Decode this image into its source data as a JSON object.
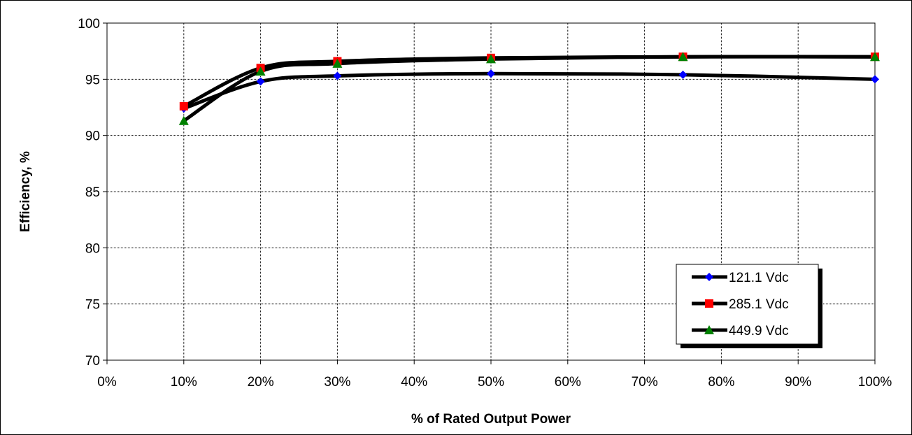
{
  "chart_data": {
    "type": "line",
    "title": "",
    "xlabel": "% of Rated Output Power",
    "ylabel": "Efficiency, %",
    "x": [
      10,
      20,
      30,
      50,
      75,
      100
    ],
    "xlim": [
      0,
      100
    ],
    "ylim": [
      70,
      100
    ],
    "x_ticks": [
      "0%",
      "10%",
      "20%",
      "30%",
      "40%",
      "50%",
      "60%",
      "70%",
      "80%",
      "90%",
      "100%"
    ],
    "y_ticks": [
      "70",
      "75",
      "80",
      "85",
      "90",
      "95",
      "100"
    ],
    "grid": true,
    "legend_position": "bottom-right",
    "series": [
      {
        "name": "121.1 Vdc",
        "marker": "diamond",
        "marker_color": "#0000FF",
        "line_color": "#000000",
        "values": [
          92.4,
          94.8,
          95.3,
          95.5,
          95.4,
          95.0
        ]
      },
      {
        "name": "285.1 Vdc",
        "marker": "square",
        "marker_color": "#FF0000",
        "line_color": "#000000",
        "values": [
          92.6,
          96.0,
          96.6,
          96.9,
          97.0,
          97.0
        ]
      },
      {
        "name": "449.9 Vdc",
        "marker": "triangle",
        "marker_color": "#008000",
        "line_color": "#000000",
        "values": [
          91.3,
          95.7,
          96.4,
          96.8,
          97.0,
          97.0
        ]
      }
    ]
  }
}
